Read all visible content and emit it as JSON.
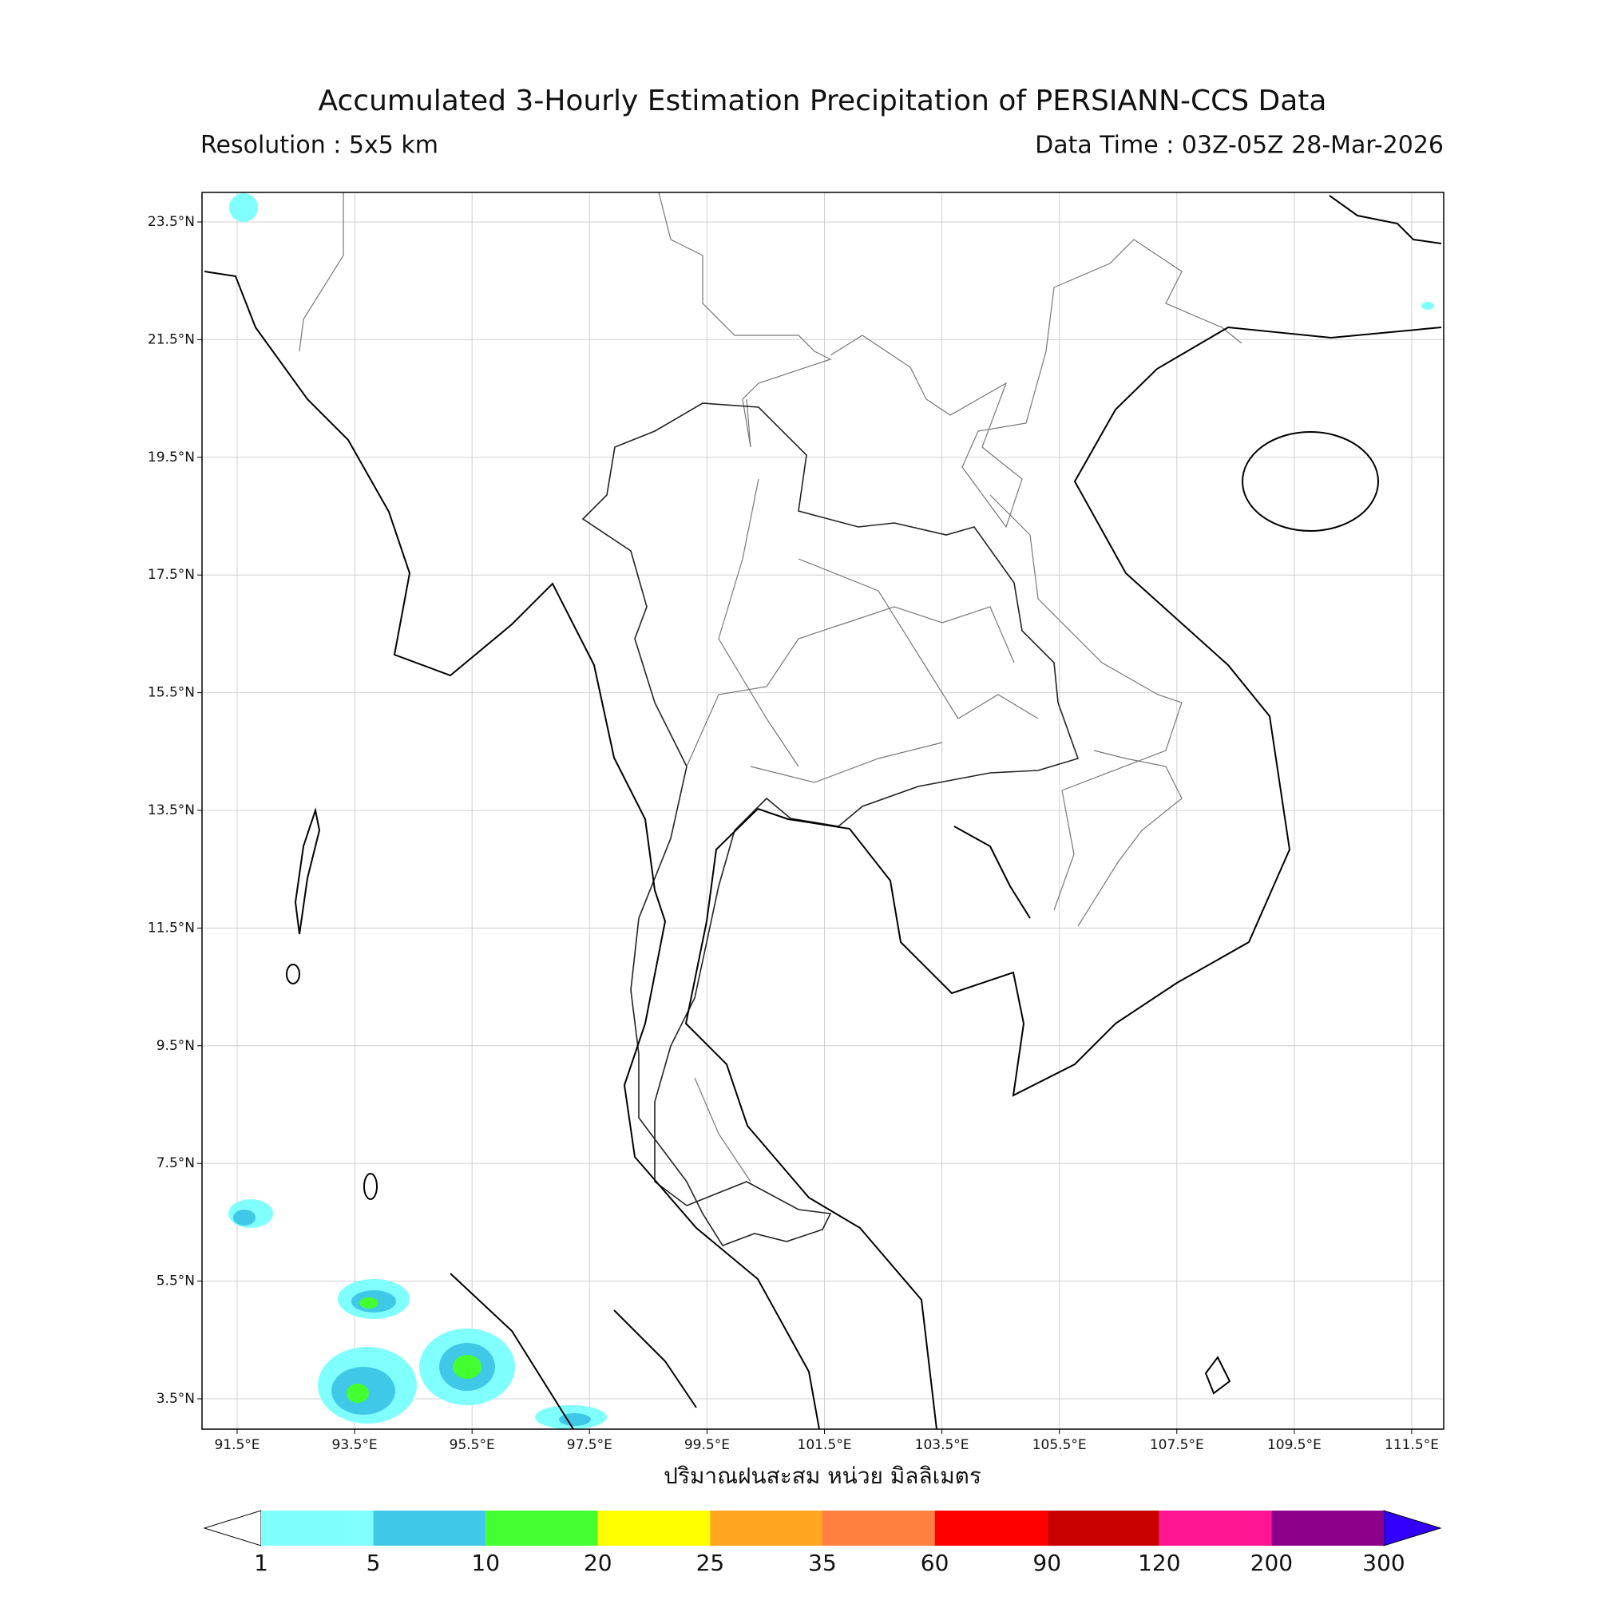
{
  "header": {
    "title": "Accumulated 3-Hourly Estimation Precipitation of PERSIANN-CCS Data",
    "resolution": "Resolution : 5x5 km",
    "data_time": "Data Time : 03Z-05Z 28-Mar-2026"
  },
  "map": {
    "lat_ticks": [
      "23.5°N",
      "21.5°N",
      "19.5°N",
      "17.5°N",
      "15.5°N",
      "13.5°N",
      "11.5°N",
      "9.5°N",
      "7.5°N",
      "5.5°N",
      "3.5°N"
    ],
    "lon_ticks": [
      "91.5°E",
      "93.5°E",
      "95.5°E",
      "97.5°E",
      "99.5°E",
      "101.5°E",
      "103.5°E",
      "105.5°E",
      "107.5°E",
      "109.5°E",
      "111.5°E"
    ],
    "xlabel": "ปริมาณฝนสะสม หน่วย มิลลิเมตร"
  },
  "colorbar": {
    "levels": [
      1,
      5,
      10,
      20,
      25,
      35,
      60,
      90,
      120,
      200,
      300
    ],
    "colors": [
      "#80ffff",
      "#40c8e8",
      "#44ff30",
      "#ffff00",
      "#ffa520",
      "#ff8040",
      "#ff0000",
      "#c80000",
      "#ff1493",
      "#8c008c"
    ],
    "under_color": "#ffffff",
    "over_color": "#3300ff"
  }
}
